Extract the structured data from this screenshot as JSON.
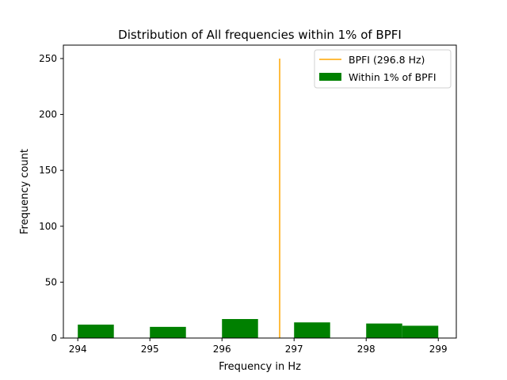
{
  "chart_data": {
    "type": "bar",
    "title": "Distribution of All frequencies within 1% of BPFI",
    "xlabel": "Frequency in Hz",
    "ylabel": "Frequency count",
    "xlim": [
      293.8,
      299.25
    ],
    "ylim": [
      0,
      262
    ],
    "x_ticks": [
      294,
      295,
      296,
      297,
      298,
      299
    ],
    "y_ticks": [
      0,
      50,
      100,
      150,
      200,
      250
    ],
    "legend_position": "upper right",
    "series": [
      {
        "name": "Within 1% of BPFI",
        "kind": "histogram",
        "color": "#008000",
        "bins": [
          {
            "x0": 294.0,
            "x1": 294.5,
            "count": 12
          },
          {
            "x0": 295.0,
            "x1": 295.5,
            "count": 10
          },
          {
            "x0": 296.0,
            "x1": 296.5,
            "count": 17
          },
          {
            "x0": 297.0,
            "x1": 297.5,
            "count": 14
          },
          {
            "x0": 298.0,
            "x1": 298.5,
            "count": 13
          },
          {
            "x0": 298.5,
            "x1": 299.0,
            "count": 11
          }
        ]
      },
      {
        "name": "BPFI (296.8 Hz)",
        "kind": "vline",
        "color": "#ffa500",
        "x": 296.8,
        "y": [
          0,
          250
        ]
      }
    ]
  }
}
